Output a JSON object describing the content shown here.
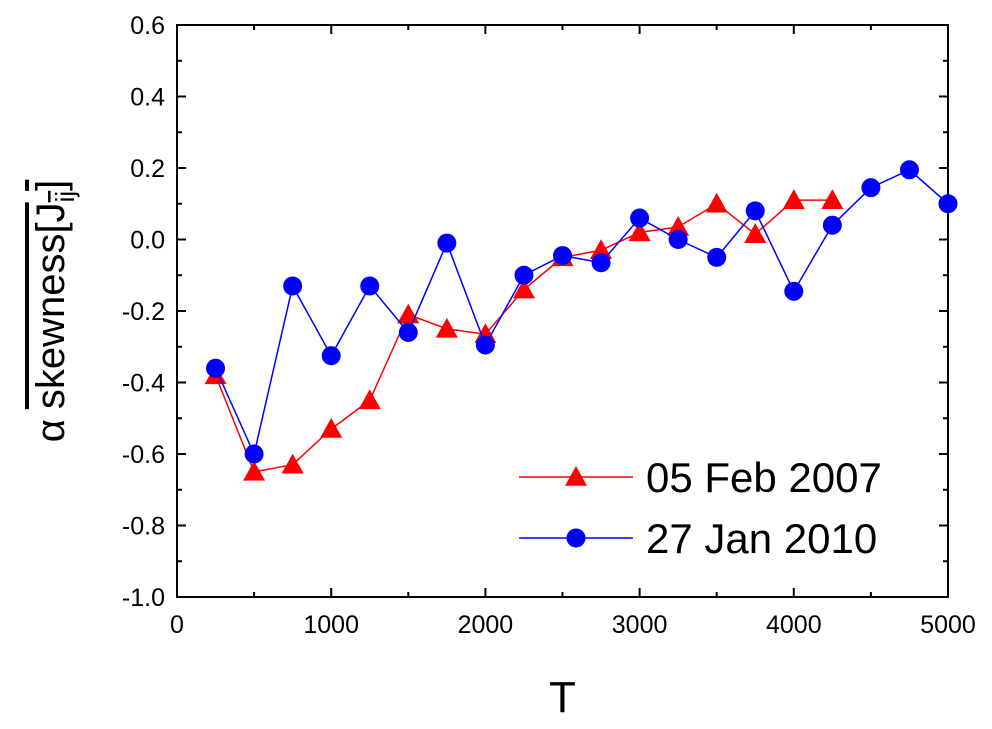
{
  "chart_data": {
    "type": "line",
    "x_label": "T",
    "y_label": {
      "prefix": "α",
      "main": "skewness[J",
      "sub": "ij",
      "end": "]"
    },
    "xlim": [
      0,
      5000
    ],
    "xticks": [
      0,
      1000,
      2000,
      3000,
      4000,
      5000
    ],
    "ylim": [
      -1,
      0.6
    ],
    "yticks": [
      {
        "value": -1,
        "label": "-1.0"
      },
      -0.8,
      -0.6,
      -0.4,
      -0.2,
      {
        "value": 0,
        "label": "0.0"
      },
      0.2,
      0.4,
      0.6
    ],
    "legend": "lower right",
    "series": [
      {
        "name": "05 Feb 2007",
        "color": "#ff0000",
        "marker": "triangle",
        "x": [
          250,
          500,
          750,
          1000,
          1250,
          1500,
          1750,
          2000,
          2250,
          2500,
          2750,
          3000,
          3250,
          3500,
          3750,
          4000,
          4250
        ],
        "values": [
          -0.38,
          -0.65,
          -0.63,
          -0.53,
          -0.45,
          -0.21,
          -0.25,
          -0.265,
          -0.14,
          -0.05,
          -0.03,
          0.02,
          0.035,
          0.1,
          0.015,
          0.11,
          0.11
        ]
      },
      {
        "name": "27 Jan 2010",
        "color": "#0000ff",
        "marker": "circle",
        "x": [
          250,
          500,
          750,
          1000,
          1250,
          1500,
          1750,
          2000,
          2250,
          2500,
          2750,
          3000,
          3250,
          3500,
          3750,
          4000,
          4250,
          4500,
          4750,
          5000
        ],
        "values": [
          -0.36,
          -0.6,
          -0.13,
          -0.325,
          -0.13,
          -0.26,
          -0.01,
          -0.295,
          -0.1,
          -0.045,
          -0.065,
          0.06,
          0,
          -0.05,
          0.08,
          -0.145,
          0.04,
          0.145,
          0.195,
          0.1
        ]
      }
    ]
  }
}
